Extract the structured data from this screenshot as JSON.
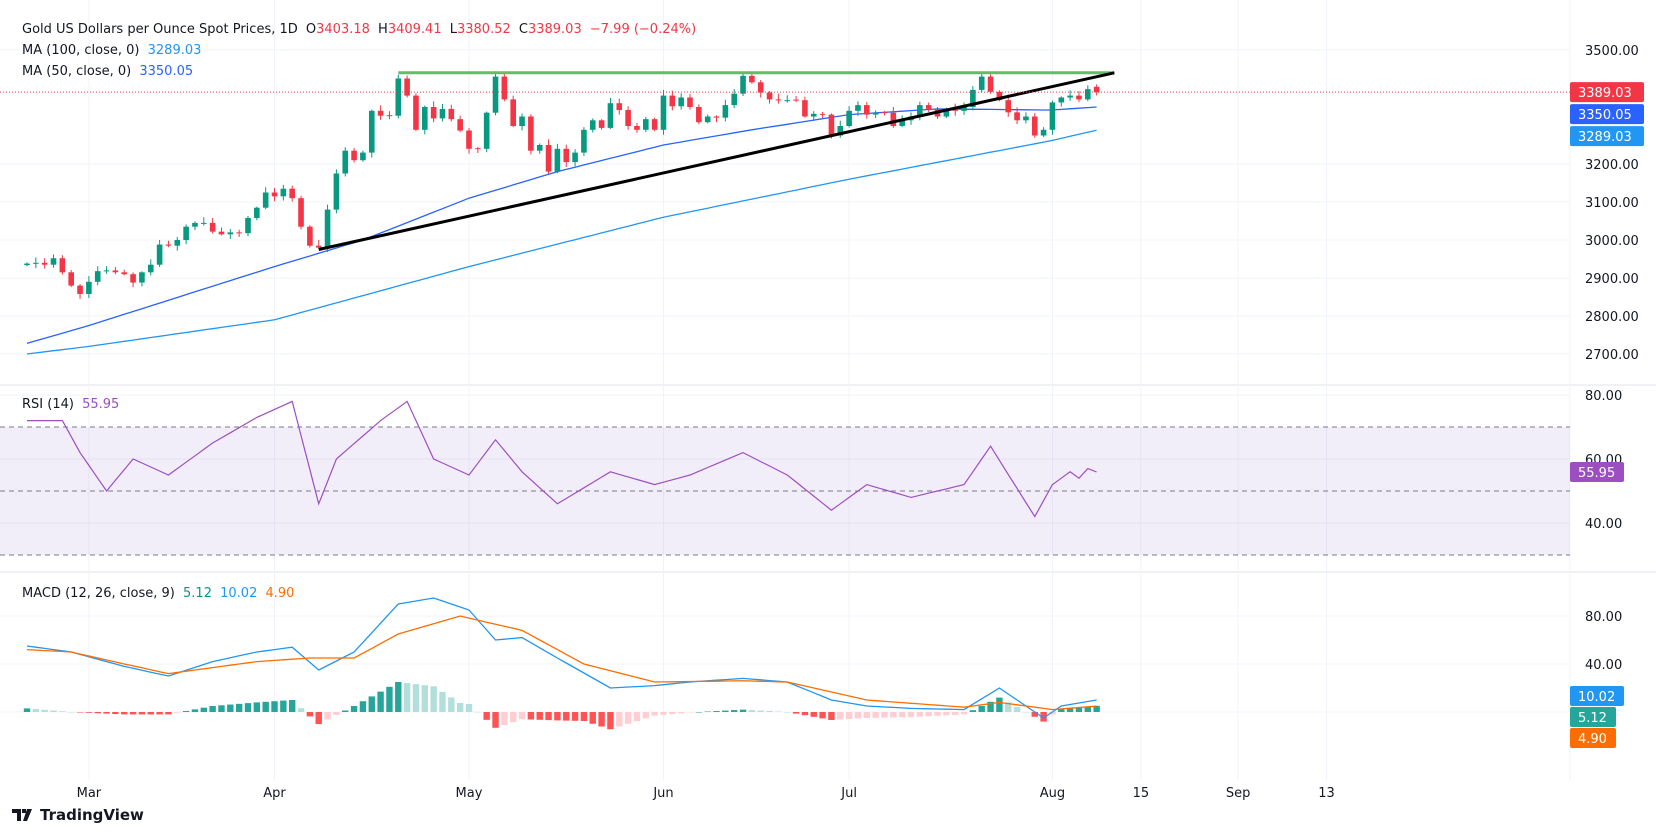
{
  "header": {
    "title": "Gold US Dollars per Ounce Spot Prices, 1D",
    "open_label": "O",
    "open": "3403.18",
    "high_label": "H",
    "high": "3409.41",
    "low_label": "L",
    "low": "3380.52",
    "close_label": "C",
    "close": "3389.03",
    "change": "−7.99 (−0.24%)"
  },
  "ma100": {
    "label": "MA (100, close, 0)",
    "value": "3289.03",
    "color": "#2196f3"
  },
  "ma50": {
    "label": "MA (50, close, 0)",
    "value": "3350.05",
    "color": "#2962ff"
  },
  "rsi": {
    "label": "RSI (14)",
    "value": "55.95",
    "color": "#9c4fc0"
  },
  "macd": {
    "label": "MACD (12, 26, close, 9)",
    "macd_value": "10.02",
    "hist_value": "5.12",
    "signal_value": "4.90",
    "macd_color": "#2196f3",
    "signal_color": "#ff6d00",
    "hist_color": "#26a69a"
  },
  "brand": "TradingView",
  "chart_data": {
    "type": "candlestick",
    "colors": {
      "up": "#089981",
      "down": "#f23645",
      "resistance": "#66bb6a",
      "trendline": "#000000"
    },
    "price_axis": {
      "ticks": [
        "3500.00",
        "3200.00",
        "3100.00",
        "3000.00",
        "2900.00",
        "2800.00",
        "2700.00"
      ],
      "range": [
        2680,
        3560
      ]
    },
    "price_labels": [
      {
        "value": "3389.03",
        "color": "#f23645"
      },
      {
        "value": "3350.05",
        "color": "#2962ff"
      },
      {
        "value": "3289.03",
        "color": "#2196f3"
      }
    ],
    "time_axis": {
      "labels": [
        {
          "text": "Mar",
          "date": "03-03"
        },
        {
          "text": "Apr",
          "date": "04-01"
        },
        {
          "text": "May",
          "date": "05-01"
        },
        {
          "text": "Jun",
          "date": "06-02"
        },
        {
          "text": "Jul",
          "date": "07-01"
        },
        {
          "text": "Aug",
          "date": "08-01"
        },
        {
          "text": "15",
          "date": "08-15"
        },
        {
          "text": "Sep",
          "date": "09-01"
        },
        {
          "text": "13",
          "date": "09-15"
        }
      ]
    },
    "dates": [
      "02-20",
      "02-21",
      "02-24",
      "02-25",
      "02-26",
      "02-27",
      "02-28",
      "03-03",
      "03-04",
      "03-05",
      "03-06",
      "03-07",
      "03-10",
      "03-11",
      "03-12",
      "03-13",
      "03-14",
      "03-17",
      "03-18",
      "03-19",
      "03-20",
      "03-21",
      "03-24",
      "03-25",
      "03-26",
      "03-27",
      "03-28",
      "03-31",
      "04-01",
      "04-02",
      "04-03",
      "04-04",
      "04-07",
      "04-08",
      "04-09",
      "04-10",
      "04-11",
      "04-14",
      "04-15",
      "04-16",
      "04-17",
      "04-18",
      "04-21",
      "04-22",
      "04-23",
      "04-24",
      "04-25",
      "04-28",
      "04-29",
      "04-30",
      "05-01",
      "05-02",
      "05-05",
      "05-06",
      "05-07",
      "05-08",
      "05-09",
      "05-12",
      "05-13",
      "05-14",
      "05-15",
      "05-16",
      "05-19",
      "05-20",
      "05-21",
      "05-22",
      "05-23",
      "05-26",
      "05-27",
      "05-28",
      "05-29",
      "05-30",
      "06-02",
      "06-03",
      "06-04",
      "06-05",
      "06-06",
      "06-09",
      "06-10",
      "06-11",
      "06-12",
      "06-13",
      "06-16",
      "06-17",
      "06-18",
      "06-19",
      "06-20",
      "06-23",
      "06-24",
      "06-25",
      "06-26",
      "06-27",
      "06-30",
      "07-01",
      "07-02",
      "07-03",
      "07-04",
      "07-07",
      "07-08",
      "07-09",
      "07-10",
      "07-11",
      "07-14",
      "07-15",
      "07-16",
      "07-17",
      "07-18",
      "07-21",
      "07-22",
      "07-23",
      "07-24",
      "07-25",
      "07-28",
      "07-29",
      "07-30",
      "07-31",
      "08-01",
      "08-04",
      "08-05",
      "08-06",
      "08-07",
      "08-08"
    ],
    "close": [
      2938,
      2940,
      2935,
      2952,
      2915,
      2880,
      2858,
      2890,
      2918,
      2920,
      2915,
      2910,
      2888,
      2915,
      2935,
      2988,
      2985,
      3000,
      3035,
      3045,
      3045,
      3022,
      3015,
      3020,
      3018,
      3058,
      3085,
      3125,
      3115,
      3135,
      3110,
      3035,
      2985,
      2980,
      3080,
      3175,
      3235,
      3210,
      3230,
      3340,
      3327,
      3327,
      3425,
      3380,
      3290,
      3350,
      3320,
      3345,
      3318,
      3288,
      3240,
      3240,
      3335,
      3430,
      3370,
      3300,
      3325,
      3235,
      3250,
      3180,
      3240,
      3205,
      3230,
      3290,
      3315,
      3295,
      3360,
      3342,
      3300,
      3290,
      3318,
      3290,
      3380,
      3352,
      3375,
      3350,
      3310,
      3325,
      3322,
      3355,
      3385,
      3432,
      3415,
      3388,
      3370,
      3368,
      3368,
      3368,
      3325,
      3332,
      3330,
      3275,
      3300,
      3340,
      3355,
      3330,
      3335,
      3335,
      3300,
      3315,
      3325,
      3355,
      3345,
      3325,
      3345,
      3340,
      3350,
      3395,
      3430,
      3390,
      3368,
      3336,
      3315,
      3325,
      3275,
      3290,
      3362,
      3375,
      3380,
      3370,
      3397.02,
      3389.03
    ],
    "last_bar": {
      "open": 3403.18,
      "high": 3409.41,
      "low": 3380.52,
      "close": 3389.03
    },
    "ma100_points": [
      [
        "02-20",
        2700
      ],
      [
        "03-03",
        2720
      ],
      [
        "04-01",
        2790
      ],
      [
        "05-01",
        2930
      ],
      [
        "06-02",
        3060
      ],
      [
        "07-01",
        3160
      ],
      [
        "08-01",
        3262
      ],
      [
        "08-08",
        3289.03
      ]
    ],
    "ma50_points": [
      [
        "02-20",
        2728
      ],
      [
        "03-03",
        2775
      ],
      [
        "04-01",
        2930
      ],
      [
        "04-15",
        3000
      ],
      [
        "05-01",
        3110
      ],
      [
        "05-15",
        3180
      ],
      [
        "06-02",
        3250
      ],
      [
        "06-16",
        3290
      ],
      [
        "07-01",
        3330
      ],
      [
        "07-15",
        3345
      ],
      [
        "08-01",
        3342
      ],
      [
        "08-08",
        3350.05
      ]
    ],
    "resistance": {
      "value": 3440,
      "from": "04-21",
      "to": "08-12"
    },
    "trendline": [
      [
        "04-08",
        2975
      ],
      [
        "08-12",
        3440
      ]
    ],
    "rsi_axis": {
      "ticks": [
        "80.00",
        "60.00",
        "40.00"
      ],
      "range": [
        25,
        83
      ],
      "band": [
        30,
        70
      ],
      "mid": 50
    },
    "rsi_points": [
      [
        "02-20",
        72
      ],
      [
        "02-26",
        72
      ],
      [
        "02-28",
        62
      ],
      [
        "03-05",
        50
      ],
      [
        "03-10",
        60
      ],
      [
        "03-14",
        55
      ],
      [
        "03-21",
        65
      ],
      [
        "03-28",
        73
      ],
      [
        "04-03",
        78
      ],
      [
        "04-08",
        46
      ],
      [
        "04-10",
        60
      ],
      [
        "04-17",
        72
      ],
      [
        "04-22",
        78
      ],
      [
        "04-25",
        60
      ],
      [
        "05-01",
        55
      ],
      [
        "05-06",
        66
      ],
      [
        "05-09",
        56
      ],
      [
        "05-15",
        46
      ],
      [
        "05-23",
        56
      ],
      [
        "05-30",
        52
      ],
      [
        "06-05",
        55
      ],
      [
        "06-13",
        62
      ],
      [
        "06-20",
        55
      ],
      [
        "06-27",
        44
      ],
      [
        "07-03",
        52
      ],
      [
        "07-10",
        48
      ],
      [
        "07-18",
        52
      ],
      [
        "07-23",
        64
      ],
      [
        "07-30",
        42
      ],
      [
        "08-01",
        52
      ],
      [
        "08-05",
        56
      ],
      [
        "08-06",
        54
      ],
      [
        "08-07",
        57
      ],
      [
        "08-08",
        55.95
      ]
    ],
    "macd_axis": {
      "ticks": [
        "80.00",
        "40.00"
      ],
      "range": [
        -30,
        120
      ]
    },
    "macd_points": [
      [
        "02-20",
        55
      ],
      [
        "02-27",
        50
      ],
      [
        "03-07",
        38
      ],
      [
        "03-14",
        30
      ],
      [
        "03-21",
        42
      ],
      [
        "03-28",
        50
      ],
      [
        "04-03",
        54
      ],
      [
        "04-08",
        35
      ],
      [
        "04-14",
        50
      ],
      [
        "04-21",
        90
      ],
      [
        "04-25",
        95
      ],
      [
        "05-01",
        85
      ],
      [
        "05-06",
        60
      ],
      [
        "05-09",
        62
      ],
      [
        "05-15",
        45
      ],
      [
        "05-23",
        20
      ],
      [
        "05-30",
        22
      ],
      [
        "06-05",
        25
      ],
      [
        "06-13",
        28
      ],
      [
        "06-20",
        25
      ],
      [
        "06-27",
        10
      ],
      [
        "07-03",
        5
      ],
      [
        "07-10",
        3
      ],
      [
        "07-18",
        2
      ],
      [
        "07-24",
        20
      ],
      [
        "07-31",
        -5
      ],
      [
        "08-04",
        5
      ],
      [
        "08-08",
        10.02
      ]
    ],
    "signal_points": [
      [
        "02-20",
        52
      ],
      [
        "02-27",
        50
      ],
      [
        "03-07",
        40
      ],
      [
        "03-14",
        32
      ],
      [
        "03-28",
        42
      ],
      [
        "04-07",
        45
      ],
      [
        "04-14",
        45
      ],
      [
        "04-21",
        65
      ],
      [
        "04-30",
        80
      ],
      [
        "05-09",
        68
      ],
      [
        "05-20",
        40
      ],
      [
        "05-30",
        25
      ],
      [
        "06-13",
        26
      ],
      [
        "06-20",
        25
      ],
      [
        "07-03",
        10
      ],
      [
        "07-18",
        4
      ],
      [
        "07-24",
        8
      ],
      [
        "08-01",
        2
      ],
      [
        "08-08",
        4.9
      ]
    ]
  }
}
